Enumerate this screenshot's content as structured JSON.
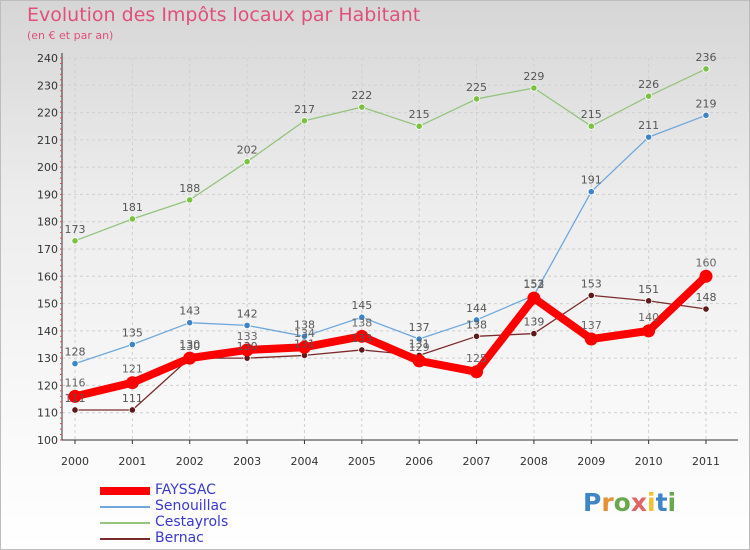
{
  "chart_data": {
    "type": "line",
    "title": "Evolution des Impôts locaux par Habitant",
    "subtitle": "(en € et par an)",
    "categories": [
      "2000",
      "2001",
      "2002",
      "2003",
      "2004",
      "2005",
      "2006",
      "2007",
      "2008",
      "2009",
      "2010",
      "2011"
    ],
    "ylim": [
      100,
      240
    ],
    "yticks": [
      100,
      110,
      120,
      130,
      140,
      150,
      160,
      170,
      180,
      190,
      200,
      210,
      220,
      230,
      240
    ],
    "grid": true,
    "legend_position": "bottom-left",
    "series": [
      {
        "name": "FAYSSAC",
        "color": "#ff0000",
        "labelColor": "#666666",
        "values": [
          116,
          121,
          130,
          133,
          134,
          138,
          129,
          125,
          152,
          137,
          140,
          160
        ]
      },
      {
        "name": "Senouillac",
        "color": "#6fa8dc",
        "markerColor": "#3d85c6",
        "labelColor": "#555555",
        "values": [
          128,
          135,
          143,
          142,
          138,
          145,
          137,
          144,
          153,
          191,
          211,
          219
        ]
      },
      {
        "name": "Cestayrols",
        "color": "#93c47d",
        "markerColor": "#7bc142",
        "labelColor": "#555555",
        "values": [
          173,
          181,
          188,
          202,
          217,
          222,
          215,
          225,
          229,
          215,
          226,
          236
        ]
      },
      {
        "name": "Bernac",
        "color": "#7b2b2b",
        "markerColor": "#5c1a1a",
        "labelColor": "#555555",
        "values": [
          111,
          111,
          130,
          130,
          131,
          133,
          131,
          138,
          139,
          153,
          151,
          148
        ]
      }
    ]
  },
  "legend": {
    "fayssac": "FAYSSAC",
    "senouillac": "Senouillac",
    "cestayrols": "Cestayrols",
    "bernac": "Bernac"
  },
  "logo": {
    "letters": [
      "P",
      "r",
      "o",
      "x",
      "i",
      "t",
      "i"
    ],
    "colors": [
      "#3d85c6",
      "#e69138",
      "#6aa84f",
      "#e06666",
      "#f1c232",
      "#3d85c6",
      "#6aa84f"
    ]
  },
  "colors": {
    "title": "#e0507a",
    "axis_label": "#333333"
  }
}
